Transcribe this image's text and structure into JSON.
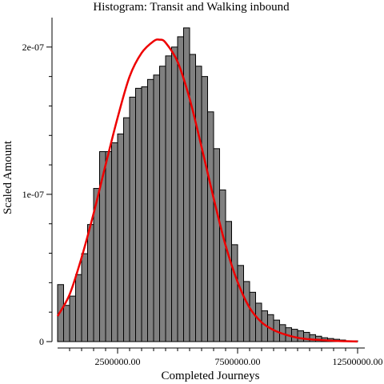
{
  "chart_data": {
    "type": "bar",
    "title": "Histogram: Transit and Walking inbound",
    "xlabel": "Completed Journeys",
    "ylabel": "Scaled Amount",
    "xlim": [
      0,
      12800000
    ],
    "ylim": [
      0,
      2.2e-07
    ],
    "x_ticks": [
      2500000,
      7500000,
      12500000
    ],
    "x_tick_labels": [
      "2500000.00",
      "7500000.00",
      "12500000.00"
    ],
    "y_ticks": [
      0,
      1e-07,
      2e-07
    ],
    "y_tick_labels": [
      "0",
      "1e-07",
      "2e-07"
    ],
    "bin_start": 0,
    "bin_width": 250000,
    "values": [
      3.87e-08,
      2.46e-08,
      3.09e-08,
      4.55e-08,
      5.97e-08,
      7.95e-08,
      1.04e-07,
      1.29e-07,
      1.29e-07,
      1.35e-07,
      1.41e-07,
      1.52e-07,
      1.66e-07,
      1.72e-07,
      1.73e-07,
      1.78e-07,
      1.81e-07,
      1.87e-07,
      1.94e-07,
      2e-07,
      2.07e-07,
      2.13e-07,
      1.95e-07,
      1.87e-07,
      1.8e-07,
      1.56e-07,
      1.31e-07,
      1.03e-07,
      8.16e-08,
      6.58e-08,
      5.17e-08,
      4.08e-08,
      3.35e-08,
      2.61e-08,
      2.09e-08,
      1.83e-08,
      1.46e-08,
      1.15e-08,
      9.42e-09,
      8.38e-09,
      7.33e-09,
      6.28e-09,
      4.71e-09,
      3.66e-09,
      2.62e-09,
      2.09e-09,
      1.57e-09,
      1.05e-09,
      5.2e-10,
      5.2e-10
    ],
    "bar_color": "#808080",
    "bar_edge_color": "#000000",
    "density_curve": {
      "color": "#ee0000",
      "x": [
        0,
        500000,
        1000000,
        1500000,
        2000000,
        2500000,
        3000000,
        3500000,
        4000000,
        4250000,
        4500000,
        5000000,
        5500000,
        6000000,
        6500000,
        7000000,
        7500000,
        8000000,
        8500000,
        9000000,
        9500000,
        10000000,
        10500000,
        11000000,
        11500000,
        12000000,
        12500000
      ],
      "y": [
        1.73e-08,
        3.2e-08,
        5.71e-08,
        8.7e-08,
        1.2e-07,
        1.52e-07,
        1.8e-07,
        1.96e-07,
        2.04e-07,
        2.05e-07,
        2.03e-07,
        1.9e-07,
        1.65e-07,
        1.32e-07,
        9.74e-08,
        6.53e-08,
        4.05e-08,
        2.3e-08,
        1.31e-08,
        7.85e-09,
        4.71e-09,
        2.62e-09,
        1.57e-09,
        1.05e-09,
        5.2e-10,
        2.6e-10,
        1e-10
      ]
    }
  }
}
